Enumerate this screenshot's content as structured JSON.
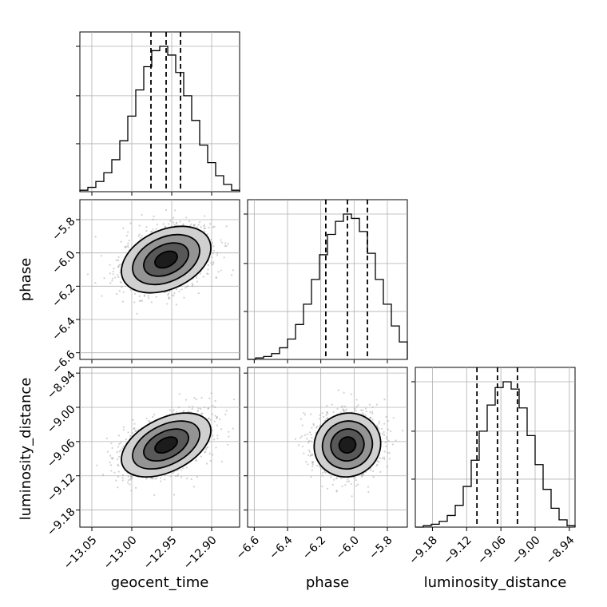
{
  "chart_data": {
    "type": "corner",
    "parameters": [
      "geocent_time",
      "phase",
      "luminosity_distance"
    ],
    "grid": true,
    "histograms": [
      {
        "parameter": "geocent_time",
        "x_range": [
          -13.065,
          -12.865
        ],
        "bin_edges": [
          -13.065,
          -13.055,
          -13.045,
          -13.035,
          -13.025,
          -13.015,
          -13.005,
          -12.995,
          -12.985,
          -12.975,
          -12.965,
          -12.955,
          -12.945,
          -12.935,
          -12.925,
          -12.915,
          -12.905,
          -12.895,
          -12.885,
          -12.875,
          -12.865
        ],
        "counts": [
          0.01,
          0.03,
          0.07,
          0.13,
          0.22,
          0.35,
          0.52,
          0.7,
          0.86,
          0.97,
          1.0,
          0.94,
          0.82,
          0.66,
          0.49,
          0.32,
          0.2,
          0.11,
          0.05,
          0.01
        ],
        "quantiles": [
          -12.976,
          -12.957,
          -12.939
        ],
        "x_ticks": [
          -13.05,
          -13.0,
          -12.95,
          -12.9
        ],
        "x_tick_labels": [
          "−13.05",
          "−13.00",
          "−12.95",
          "−12.90"
        ]
      },
      {
        "parameter": "phase",
        "x_range": [
          -6.64,
          -5.68
        ],
        "bin_edges": [
          -6.64,
          -6.592,
          -6.544,
          -6.496,
          -6.448,
          -6.4,
          -6.352,
          -6.304,
          -6.256,
          -6.208,
          -6.16,
          -6.112,
          -6.064,
          -6.016,
          -5.968,
          -5.92,
          -5.872,
          -5.824,
          -5.776,
          -5.728,
          -5.68
        ],
        "counts": [
          0.0,
          0.01,
          0.02,
          0.04,
          0.08,
          0.14,
          0.24,
          0.38,
          0.55,
          0.72,
          0.86,
          0.95,
          1.0,
          0.97,
          0.88,
          0.73,
          0.55,
          0.38,
          0.23,
          0.12
        ],
        "quantiles": [
          -6.17,
          -6.04,
          -5.92
        ],
        "x_ticks": [
          -6.6,
          -6.4,
          -6.2,
          -6.0,
          -5.8
        ],
        "x_tick_labels": [
          "−6.6",
          "−6.4",
          "−6.2",
          "−6.0",
          "−5.8"
        ]
      },
      {
        "parameter": "luminosity_distance",
        "x_range": [
          -9.21,
          -8.93
        ],
        "bin_edges": [
          -9.21,
          -9.196,
          -9.182,
          -9.168,
          -9.154,
          -9.14,
          -9.126,
          -9.112,
          -9.098,
          -9.084,
          -9.07,
          -9.056,
          -9.042,
          -9.028,
          -9.014,
          -9.0,
          -8.986,
          -8.972,
          -8.958,
          -8.944,
          -8.93
        ],
        "counts": [
          0.0,
          0.01,
          0.02,
          0.04,
          0.08,
          0.15,
          0.28,
          0.46,
          0.66,
          0.84,
          0.96,
          1.0,
          0.95,
          0.82,
          0.63,
          0.43,
          0.26,
          0.13,
          0.05,
          0.01
        ],
        "quantiles": [
          -9.102,
          -9.066,
          -9.031
        ],
        "x_ticks": [
          -9.18,
          -9.12,
          -9.06,
          -9.0,
          -8.94
        ],
        "x_tick_labels": [
          "−9.18",
          "−9.12",
          "−9.06",
          "−9.00",
          "−8.94"
        ]
      }
    ],
    "pair_panels": [
      {
        "x": "geocent_time",
        "y": "phase",
        "x_range": [
          -13.065,
          -12.865
        ],
        "y_range": [
          -6.64,
          -5.68
        ],
        "mean": [
          -12.957,
          -6.04
        ],
        "sigma": [
          0.028,
          0.1
        ],
        "rho": 0.35,
        "y_ticks": [
          -6.6,
          -6.4,
          -6.2,
          -6.0,
          -5.8
        ],
        "y_tick_labels": [
          "−6.6",
          "−6.4",
          "−6.2",
          "−6.0",
          "−5.8"
        ]
      },
      {
        "x": "geocent_time",
        "y": "luminosity_distance",
        "x_range": [
          -13.065,
          -12.865
        ],
        "y_range": [
          -9.21,
          -8.93
        ],
        "mean": [
          -12.957,
          -9.066
        ],
        "sigma": [
          0.028,
          0.028
        ],
        "rho": 0.45,
        "y_ticks": [
          -9.18,
          -9.12,
          -9.06,
          -9.0,
          -8.94
        ],
        "y_tick_labels": [
          "−9.18",
          "−9.12",
          "−9.06",
          "−9.00",
          "−8.94"
        ]
      },
      {
        "x": "phase",
        "y": "luminosity_distance",
        "x_range": [
          -6.64,
          -5.68
        ],
        "y_range": [
          -9.21,
          -8.93
        ],
        "mean": [
          -6.04,
          -9.066
        ],
        "sigma": [
          0.1,
          0.028
        ],
        "rho": 0.05,
        "y_ticks": [
          -9.18,
          -9.12,
          -9.06,
          -9.0,
          -8.94
        ],
        "y_tick_labels": [
          "−9.18",
          "−9.12",
          "−9.06",
          "−9.00",
          "−8.94"
        ]
      }
    ],
    "contour_sigma_levels": [
      0.5,
      1.0,
      1.5,
      2.0
    ],
    "colors": {
      "line": "#000000",
      "grid": "#b0b0b0",
      "scatter": "#9a9a9a",
      "density_high": "#111111",
      "density_low": "#f2f2f2"
    }
  }
}
